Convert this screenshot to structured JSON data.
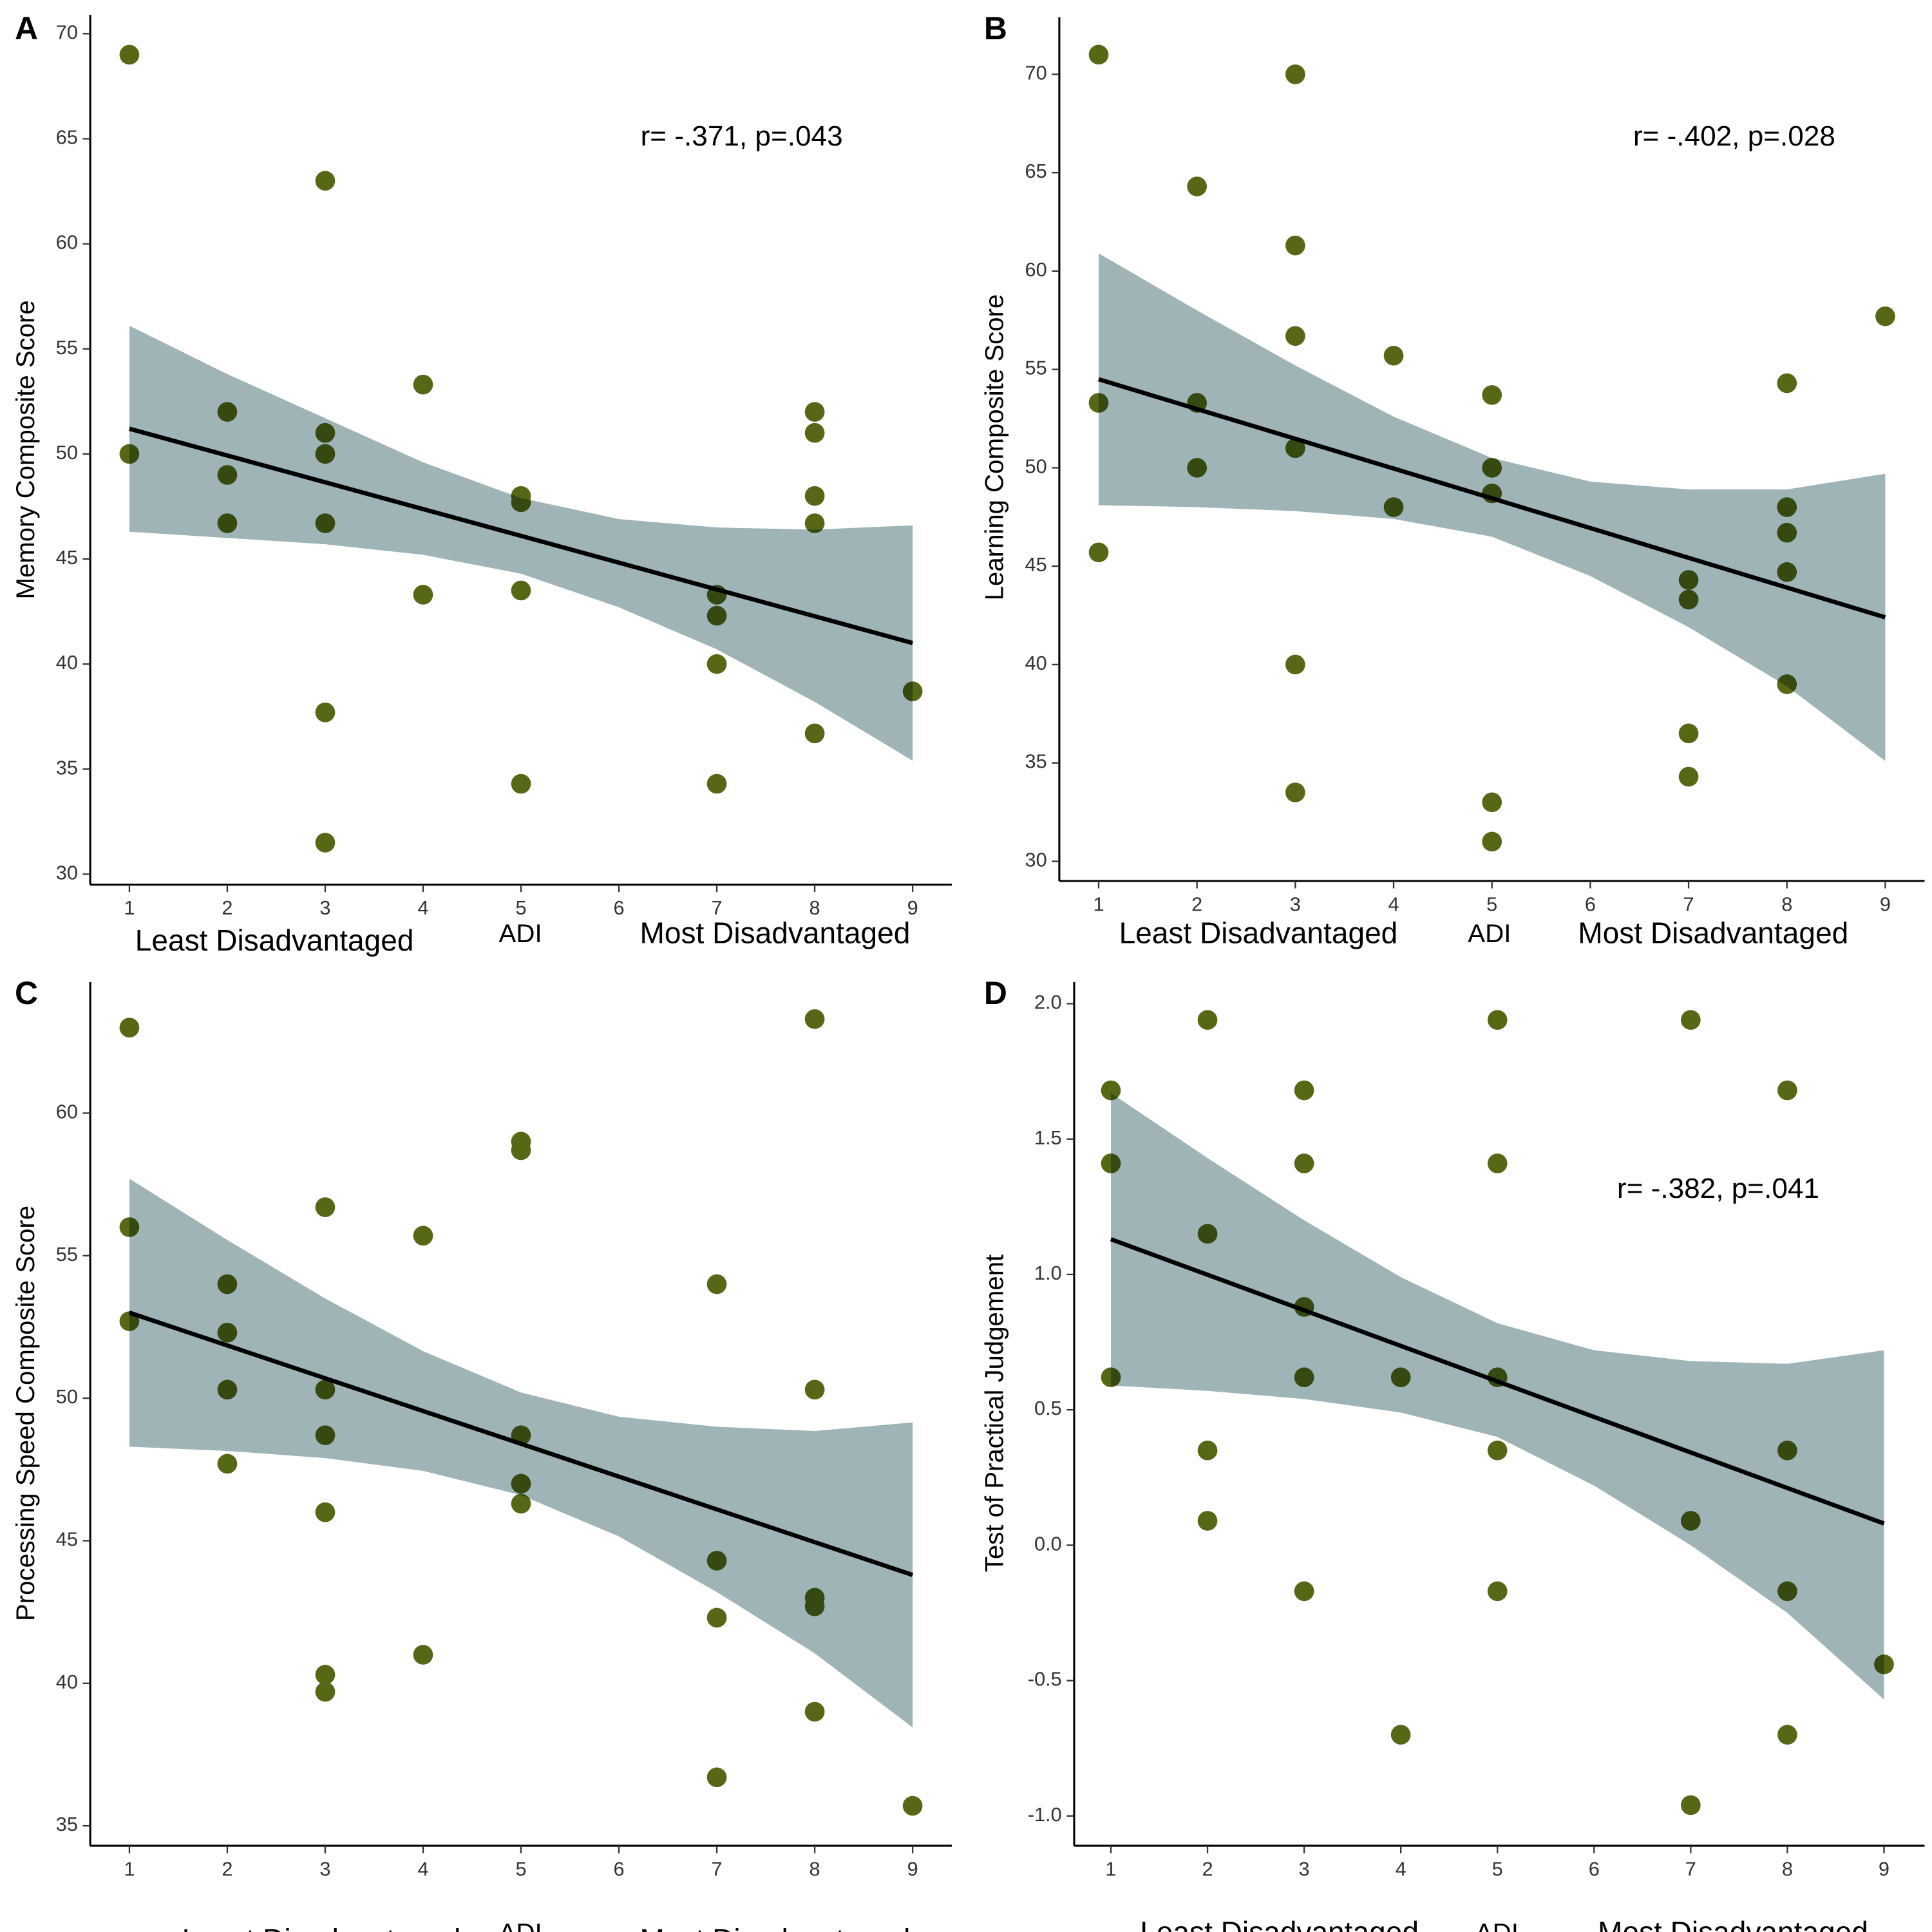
{
  "chart_data": [
    {
      "type": "scatter",
      "panel": "A",
      "ylabel": "Memory Composite Score",
      "xlabels": [
        "Least Disadvantaged",
        "ADI",
        "Most Disadvantaged"
      ],
      "annotation": "r= -.371, p=.043",
      "x": [
        1,
        1,
        2,
        2,
        2,
        3,
        3,
        3,
        3,
        3,
        3,
        4,
        4,
        5,
        5,
        5,
        5,
        7,
        7,
        7,
        7,
        8,
        8,
        8,
        8,
        8,
        9
      ],
      "y": [
        69,
        50,
        52,
        49,
        46.7,
        63,
        51,
        50,
        46.7,
        37.7,
        31.5,
        53.3,
        43.3,
        48,
        47.7,
        43.5,
        34.3,
        43.3,
        42.3,
        40,
        34.3,
        52,
        51,
        48,
        46.7,
        36.7,
        38.7
      ],
      "fit": {
        "x": [
          1,
          9
        ],
        "y": [
          51.2,
          41.0
        ]
      },
      "band": {
        "x": [
          1,
          2,
          3,
          4,
          5,
          6,
          7,
          8,
          9
        ],
        "upper": [
          56.1,
          53.8,
          51.7,
          49.6,
          47.9,
          46.9,
          46.5,
          46.4,
          46.6
        ],
        "lower": [
          46.3,
          46.0,
          45.7,
          45.2,
          44.3,
          42.7,
          40.7,
          38.2,
          35.4
        ]
      },
      "xlim": [
        0.6,
        9.4
      ],
      "ylim": [
        29.5,
        70.9
      ],
      "xticks": [
        1,
        2,
        3,
        4,
        5,
        6,
        7,
        8,
        9
      ],
      "yticks": [
        30,
        35,
        40,
        45,
        50,
        55,
        60,
        65,
        70
      ],
      "point_color": "#566716",
      "band_color": "#9fb4b7",
      "line_color": "#000000"
    },
    {
      "type": "scatter",
      "panel": "B",
      "ylabel": "Learning Composite Score",
      "xlabels": [
        "Least Disadvantaged",
        "ADI",
        "Most Disadvantaged"
      ],
      "annotation": "r= -.402, p=.028",
      "x": [
        1,
        1,
        1,
        2,
        2,
        2,
        3,
        3,
        3,
        3,
        3,
        3,
        4,
        4,
        5,
        5,
        5,
        5,
        5,
        7,
        7,
        7,
        7,
        8,
        8,
        8,
        8,
        8,
        9
      ],
      "y": [
        71,
        53.3,
        45.7,
        64.3,
        53.3,
        50,
        70,
        61.3,
        56.7,
        51,
        40,
        33.5,
        55.7,
        48,
        53.7,
        50,
        48.7,
        33,
        31,
        44.3,
        43.3,
        36.5,
        34.3,
        54.3,
        48,
        46.7,
        44.7,
        39,
        57.7
      ],
      "fit": {
        "x": [
          1,
          9
        ],
        "y": [
          54.5,
          42.4
        ]
      },
      "band": {
        "x": [
          1,
          2,
          3,
          4,
          5,
          6,
          7,
          8,
          9
        ],
        "upper": [
          60.9,
          58.0,
          55.2,
          52.6,
          50.5,
          49.3,
          48.9,
          48.9,
          49.7
        ],
        "lower": [
          48.1,
          48.0,
          47.8,
          47.4,
          46.5,
          44.5,
          41.9,
          38.9,
          35.1
        ]
      },
      "xlim": [
        0.6,
        9.4
      ],
      "ylim": [
        29.0,
        72.9
      ],
      "xticks": [
        1,
        2,
        3,
        4,
        5,
        6,
        7,
        8,
        9
      ],
      "yticks": [
        30,
        35,
        40,
        45,
        50,
        55,
        60,
        65,
        70
      ],
      "point_color": "#566716",
      "band_color": "#9fb4b7",
      "line_color": "#000000"
    },
    {
      "type": "scatter",
      "panel": "C",
      "ylabel": "Processing Speed Composite Score",
      "xlabels": [
        "Least Disadvantaged",
        "ADI",
        "Most Disadvantaged"
      ],
      "x": [
        1,
        1,
        1,
        2,
        2,
        2,
        2,
        3,
        3,
        3,
        3,
        3,
        3,
        4,
        4,
        5,
        5,
        5,
        5,
        5,
        7,
        7,
        7,
        7,
        8,
        8,
        8,
        8,
        8,
        9
      ],
      "y": [
        63,
        56,
        52.7,
        54,
        52.3,
        50.3,
        47.7,
        56.7,
        50.3,
        48.7,
        46,
        40.3,
        39.7,
        55.7,
        41,
        59,
        58.7,
        48.7,
        47,
        46.3,
        54,
        44.3,
        42.3,
        36.7,
        63.3,
        50.3,
        43,
        42.7,
        39,
        35.7
      ],
      "fit": {
        "x": [
          1,
          9
        ],
        "y": [
          53.0,
          43.8
        ]
      },
      "band": {
        "x": [
          1,
          2,
          3,
          4,
          5,
          6,
          7,
          8,
          9
        ],
        "upper": [
          57.7,
          55.55,
          53.5,
          51.65,
          50.2,
          49.35,
          49.0,
          48.85,
          49.15
        ],
        "lower": [
          48.3,
          48.15,
          47.9,
          47.45,
          46.6,
          45.15,
          43.2,
          41.05,
          38.45
        ]
      },
      "xlim": [
        0.6,
        9.4
      ],
      "ylim": [
        34.3,
        64.6
      ],
      "xticks": [
        1,
        2,
        3,
        4,
        5,
        6,
        7,
        8,
        9
      ],
      "yticks": [
        35,
        40,
        45,
        50,
        55,
        60
      ],
      "point_color": "#566716",
      "band_color": "#9fb4b7",
      "line_color": "#000000"
    },
    {
      "type": "scatter",
      "panel": "D",
      "ylabel": "Test of Practical Judgement",
      "xlabels": [
        "Least Disadvantaged",
        "ADI",
        "Most Disadvantaged"
      ],
      "annotation": "r= -.382, p=.041",
      "x": [
        1,
        1,
        1,
        2,
        2,
        2,
        2,
        3,
        3,
        3,
        3,
        3,
        4,
        4,
        5,
        5,
        5,
        5,
        5,
        7,
        7,
        7,
        8,
        8,
        8,
        8,
        9
      ],
      "y": [
        1.68,
        1.41,
        0.62,
        1.94,
        1.15,
        0.35,
        0.09,
        1.68,
        1.41,
        0.88,
        0.62,
        -0.17,
        0.62,
        -0.7,
        1.94,
        1.41,
        0.62,
        0.35,
        -0.17,
        1.94,
        0.09,
        -0.96,
        1.68,
        0.35,
        -0.17,
        -0.7,
        -0.44
      ],
      "fit": {
        "x": [
          1,
          9
        ],
        "y": [
          1.13,
          0.08
        ]
      },
      "band": {
        "x": [
          1,
          2,
          3,
          4,
          5,
          6,
          7,
          8,
          9
        ],
        "upper": [
          1.67,
          1.43,
          1.2,
          0.99,
          0.82,
          0.72,
          0.68,
          0.67,
          0.72
        ],
        "lower": [
          0.59,
          0.57,
          0.54,
          0.49,
          0.4,
          0.22,
          0.0,
          -0.25,
          -0.57
        ]
      },
      "xlim": [
        0.62,
        9.42
      ],
      "ylim": [
        -1.11,
        2.08
      ],
      "xticks": [
        1,
        2,
        3,
        4,
        5,
        6,
        7,
        8,
        9
      ],
      "yticks": [
        {
          "value": -1,
          "label": "-1.0"
        },
        -0.5,
        {
          "value": 0,
          "label": "0.0"
        },
        0.5,
        {
          "value": 1,
          "label": "1.0"
        },
        1.5,
        {
          "value": 2,
          "label": "2.0"
        }
      ],
      "point_color": "#566716",
      "band_color": "#9fb4b7",
      "line_color": "#000000"
    }
  ]
}
